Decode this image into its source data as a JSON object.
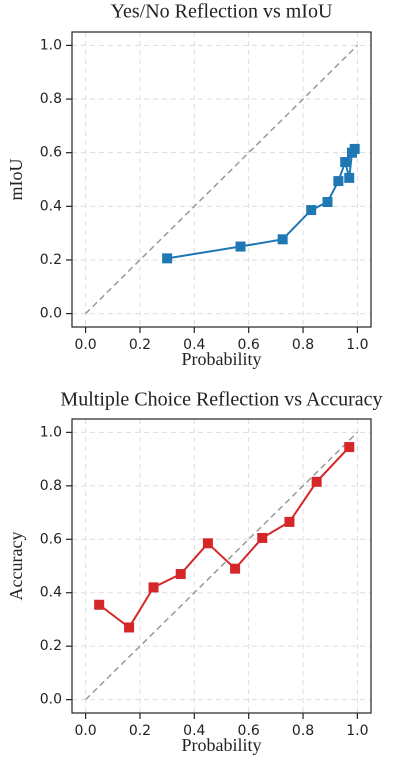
{
  "chart_data": [
    {
      "type": "line",
      "title": "Yes/No Reflection vs mIoU",
      "xlabel": "Probability",
      "ylabel": "mIoU",
      "x": [
        0.3,
        0.57,
        0.725,
        0.83,
        0.89,
        0.93,
        0.955,
        0.97,
        0.98,
        0.99
      ],
      "series": [
        {
          "color": "#1f77b4",
          "values": [
            0.206,
            0.25,
            0.277,
            0.386,
            0.416,
            0.494,
            0.565,
            0.506,
            0.6,
            0.614
          ]
        }
      ],
      "xlim": [
        -0.05,
        1.05
      ],
      "ylim": [
        -0.05,
        1.05
      ],
      "xticks": [
        {
          "value": 0,
          "label": "0.0"
        },
        0.2,
        0.4,
        0.6,
        0.8,
        {
          "value": 1,
          "label": "1.0"
        }
      ],
      "yticks": [
        {
          "value": 0,
          "label": "0.0"
        },
        0.2,
        0.4,
        0.6,
        0.8,
        {
          "value": 1,
          "label": "1.0"
        }
      ],
      "grid": true
    },
    {
      "type": "line",
      "title": "Multiple Choice Reflection vs Accuracy",
      "xlabel": "Probability",
      "ylabel": "Accuracy",
      "x": [
        0.05,
        0.16,
        0.25,
        0.35,
        0.45,
        0.55,
        0.65,
        0.75,
        0.85,
        0.97
      ],
      "series": [
        {
          "color": "#d62728",
          "values": [
            0.355,
            0.27,
            0.42,
            0.47,
            0.585,
            0.49,
            0.605,
            0.665,
            0.815,
            0.945
          ]
        }
      ],
      "xlim": [
        -0.05,
        1.05
      ],
      "ylim": [
        -0.05,
        1.05
      ],
      "xticks": [
        {
          "value": 0,
          "label": "0.0"
        },
        0.2,
        0.4,
        0.6,
        0.8,
        {
          "value": 1,
          "label": "1.0"
        }
      ],
      "yticks": [
        {
          "value": 0,
          "label": "0.0"
        },
        0.2,
        0.4,
        0.6,
        0.8,
        {
          "value": 1,
          "label": "1.0"
        }
      ],
      "grid": true
    }
  ]
}
